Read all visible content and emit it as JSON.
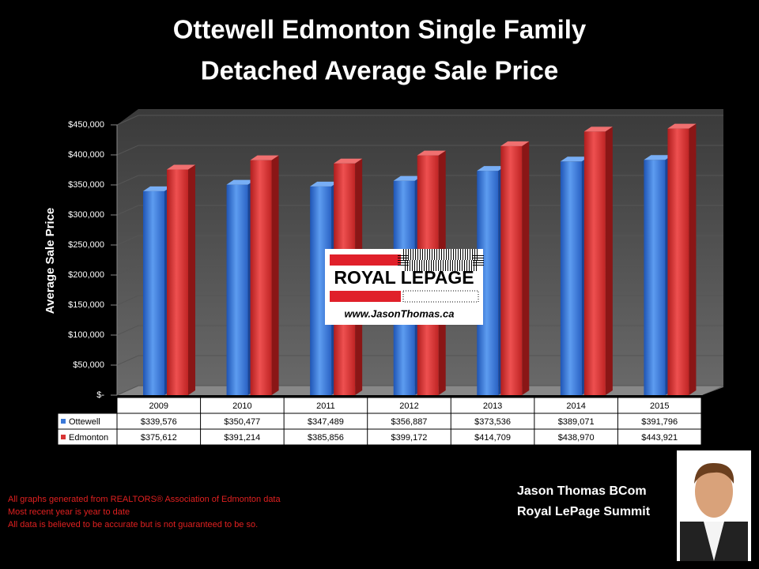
{
  "chart_data": {
    "type": "bar",
    "title": [
      "Ottewell Edmonton Single Family",
      "Detached Average Sale Price"
    ],
    "y_label": "Average Sale Price",
    "categories": [
      "2009",
      "2010",
      "2011",
      "2012",
      "2013",
      "2014",
      "2015"
    ],
    "series": [
      {
        "name": "Ottewell",
        "color": "#3a78d8",
        "values": [
          339576,
          350477,
          347489,
          356887,
          373536,
          389071,
          391796
        ],
        "value_labels": [
          "$339,576",
          "$350,477",
          "$347,489",
          "$356,887",
          "$373,536",
          "$389,071",
          "$391,796"
        ]
      },
      {
        "name": "Edmonton",
        "color": "#d83434",
        "values": [
          375612,
          391214,
          385856,
          399172,
          414709,
          438970,
          443921
        ],
        "value_labels": [
          "$375,612",
          "$391,214",
          "$385,856",
          "$399,172",
          "$414,709",
          "$438,970",
          "$443,921"
        ]
      }
    ],
    "ylim": [
      0,
      450000
    ],
    "yticks": [
      {
        "value": 0,
        "label": "$-"
      },
      {
        "value": 50000,
        "label": "$50,000"
      },
      {
        "value": 100000,
        "label": "$100,000"
      },
      {
        "value": 150000,
        "label": "$150,000"
      },
      {
        "value": 200000,
        "label": "$200,000"
      },
      {
        "value": 250000,
        "label": "$250,000"
      },
      {
        "value": 300000,
        "label": "$300,000"
      },
      {
        "value": 350000,
        "label": "$350,000"
      },
      {
        "value": 400000,
        "label": "$400,000"
      },
      {
        "value": 450000,
        "label": "$450,000"
      }
    ],
    "grid": true
  },
  "logo": {
    "brand": "ROYAL LEPAGE",
    "url": "www.JasonThomas.ca"
  },
  "footnotes": [
    "All graphs generated from REALTORS® Association of Edmonton data",
    "Most recent year is year to date",
    "All data is believed to be accurate but is not guaranteed to be so."
  ],
  "agent": [
    "Jason Thomas BCom",
    "Royal LePage Summit"
  ]
}
